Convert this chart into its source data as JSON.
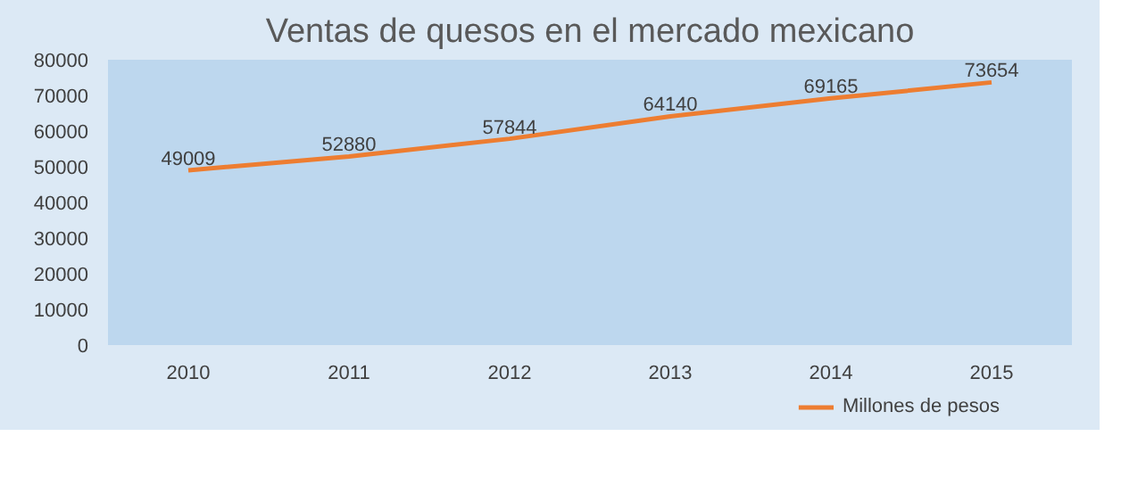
{
  "chart_data": {
    "type": "line",
    "title": "Ventas de quesos en el mercado mexicano",
    "categories": [
      "2010",
      "2011",
      "2012",
      "2013",
      "2014",
      "2015"
    ],
    "series": [
      {
        "name": "Millones de pesos",
        "color": "#ed7d31",
        "values": [
          49009,
          52880,
          57844,
          64140,
          69165,
          73654
        ]
      }
    ],
    "ylim": [
      0,
      80000
    ],
    "yticks": [
      0,
      10000,
      20000,
      30000,
      40000,
      50000,
      60000,
      70000,
      80000
    ],
    "data_labels": true,
    "legend": "bottom right",
    "grid": false,
    "marker": "none",
    "line_style": "solid"
  }
}
